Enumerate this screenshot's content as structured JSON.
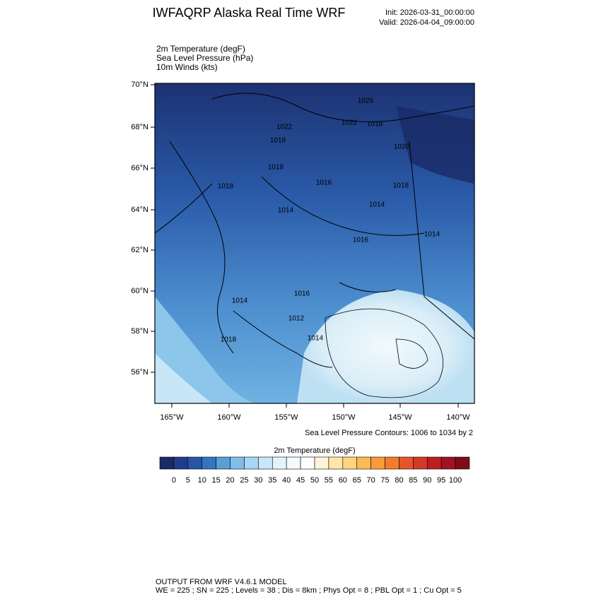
{
  "header": {
    "title": "IWFAQRP Alaska Real Time WRF",
    "init": "Init: 2026-03-31_00:00:00",
    "valid": "Valid: 2026-04-04_09:00:00"
  },
  "fields": [
    "2m Temperature   (degF)",
    "Sea Level Pressure   (hPa)",
    "10m Winds   (kts)"
  ],
  "map": {
    "lat_labels": [
      "70°N",
      "68°N",
      "66°N",
      "64°N",
      "62°N",
      "60°N",
      "58°N",
      "56°N"
    ],
    "lon_labels": [
      "165°W",
      "160°W",
      "155°W",
      "150°W",
      "145°W",
      "140°W"
    ],
    "contour_labels": [
      "1026",
      "1022",
      "1022",
      "1018",
      "1018",
      "1018",
      "1020",
      "1018",
      "1016",
      "1018",
      "1014",
      "1014",
      "1014",
      "1016",
      "1016",
      "1014",
      "1012",
      "1018",
      "1014"
    ],
    "contour_note": "Sea Level Pressure Contours: 1006 to 1034 by 2"
  },
  "colorbar": {
    "title": "2m Temperature  (degF)",
    "ticks": [
      "0",
      "5",
      "10",
      "15",
      "20",
      "25",
      "30",
      "35",
      "40",
      "45",
      "50",
      "55",
      "60",
      "65",
      "70",
      "75",
      "80",
      "85",
      "90",
      "95",
      "100"
    ],
    "colors": [
      "#1a2b66",
      "#1f3d8c",
      "#2756a8",
      "#3575c0",
      "#56a0d8",
      "#7fbee8",
      "#a6d7f3",
      "#c7e7f8",
      "#e3f3fb",
      "#f4f9fd",
      "#ffffff",
      "#fff4d8",
      "#ffe6a8",
      "#fed47c",
      "#fdb954",
      "#fb9a3a",
      "#f47b2d",
      "#e8542a",
      "#d43926",
      "#bb1f24",
      "#a01220",
      "#7e0c18"
    ]
  },
  "footer": {
    "line1": "OUTPUT FROM WRF V4.6.1 MODEL",
    "line2": "WE = 225 ; SN = 225 ; Levels = 38 ; Dis = 8km ; Phys Opt = 8 ; PBL Opt = 1 ; Cu Opt = 5"
  }
}
